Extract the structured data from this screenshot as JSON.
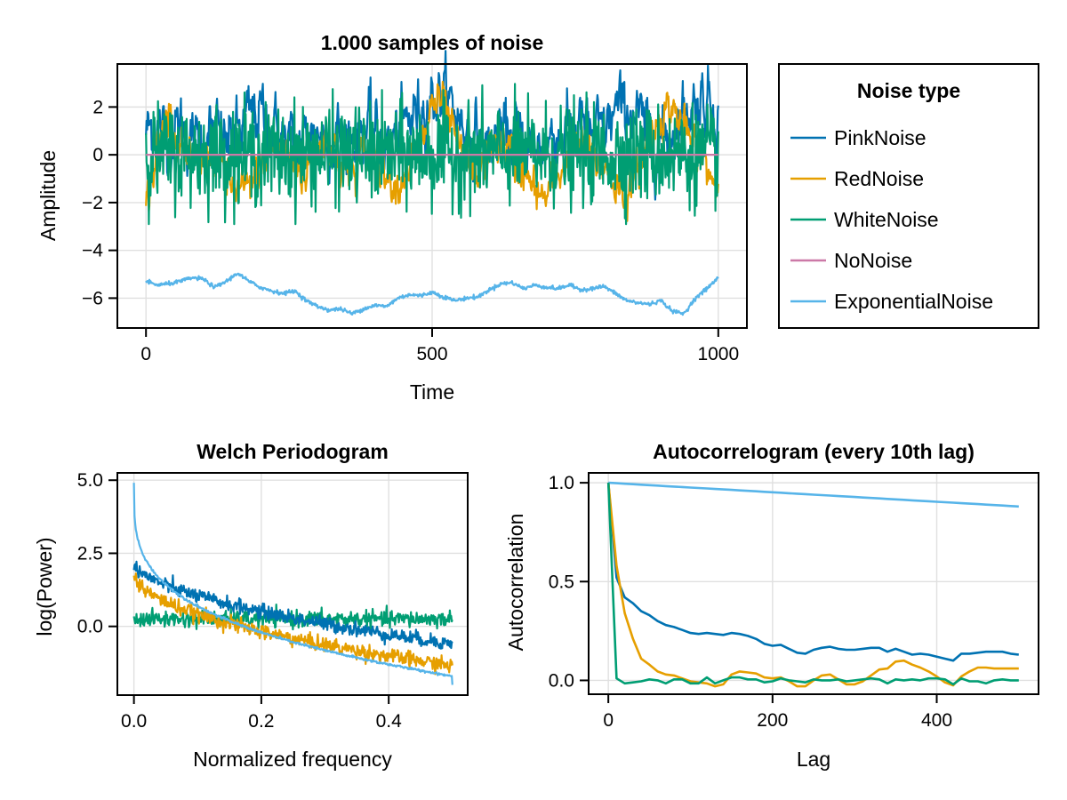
{
  "colors": {
    "PinkNoise": "#0072b2",
    "RedNoise": "#e69f00",
    "WhiteNoise": "#009e73",
    "NoNoise": "#cc79a7",
    "ExponentialNoise": "#56b4e9"
  },
  "legend": {
    "title": "Noise type",
    "entries": [
      "PinkNoise",
      "RedNoise",
      "WhiteNoise",
      "NoNoise",
      "ExponentialNoise"
    ]
  },
  "chart_data": [
    {
      "id": "timeseries",
      "type": "line",
      "title": "1.000 samples of noise",
      "xlabel": "Time",
      "ylabel": "Amplitude",
      "xlim": [
        -50,
        1050
      ],
      "ylim": [
        -7.25,
        3.8
      ],
      "xticks": [
        0,
        500,
        1000
      ],
      "xtick_labels": [
        "0",
        "500",
        "1000"
      ],
      "yticks": [
        2,
        0,
        -2,
        -4,
        -6
      ],
      "ytick_labels": [
        "2",
        "0",
        "−2",
        "−4",
        "−6"
      ],
      "grid": true,
      "x_range": [
        0,
        1000
      ],
      "n_samples": 1000,
      "series": [
        {
          "name": "PinkNoise",
          "envelope": [
            1.0,
            1.2,
            0.6,
            1.3,
            0.4,
            0.8,
            1.0,
            0.5,
            0.9,
            1.6,
            1.8,
            1.2,
            0.6,
            0.4,
            0.8,
            1.0,
            0.6,
            0.9,
            0.7,
            1.2,
            1.0,
            0.4,
            0.8,
            1.5,
            2.0,
            2.4,
            2.6,
            1.8,
            1.0,
            0.6,
            0.3,
            0.8,
            1.0,
            0.5,
            0.2,
            0.6,
            0.9,
            1.0,
            1.3,
            0.8,
            1.0,
            1.8,
            2.0,
            1.5,
            0.8,
            0.6,
            1.1,
            1.8,
            2.2,
            2.4,
            1.8
          ],
          "spread": 0.9
        },
        {
          "name": "RedNoise",
          "envelope": [
            -2.2,
            0.2,
            1.8,
            0.4,
            -0.8,
            -0.4,
            0.2,
            -1.0,
            -1.6,
            -1.5,
            -0.6,
            0.2,
            0.3,
            -0.4,
            -0.8,
            0.6,
            0.8,
            -0.4,
            -0.9,
            0.0,
            0.4,
            -0.7,
            -1.2,
            -0.4,
            0.0,
            2.2,
            2.0,
            0.6,
            -0.5,
            -0.8,
            0.2,
            0.6,
            -0.2,
            -0.8,
            -1.6,
            -1.8,
            -0.8,
            0.0,
            0.4,
            -0.3,
            -0.4,
            -1.2,
            -1.8,
            -0.6,
            0.6,
            1.8,
            2.0,
            1.0,
            0.2,
            -0.6,
            -1.2
          ],
          "spread": 0.6
        },
        {
          "name": "WhiteNoise",
          "envelope": [
            0,
            0,
            0,
            0,
            0,
            0,
            0,
            0,
            0,
            0,
            0,
            0,
            0,
            0,
            0,
            0,
            0,
            0,
            0,
            0,
            0,
            0,
            0,
            0,
            0,
            0,
            0,
            0,
            0,
            0,
            0,
            0,
            0,
            0,
            0,
            0,
            0,
            0,
            0,
            0,
            0,
            0,
            0,
            0,
            0,
            0,
            0,
            0,
            0,
            0,
            0
          ],
          "spread": 1.0,
          "range": [
            -2.9,
            3.0
          ]
        },
        {
          "name": "NoNoise",
          "envelope": [
            0,
            0
          ],
          "spread": 0
        },
        {
          "name": "ExponentialNoise",
          "envelope": [
            -5.3,
            -5.45,
            -5.4,
            -5.3,
            -5.15,
            -5.2,
            -5.55,
            -5.3,
            -4.95,
            -5.3,
            -5.55,
            -5.7,
            -5.8,
            -5.7,
            -6.1,
            -6.35,
            -6.5,
            -6.45,
            -6.65,
            -6.45,
            -6.3,
            -6.35,
            -6.0,
            -5.85,
            -5.9,
            -5.75,
            -5.95,
            -6.1,
            -6.0,
            -5.95,
            -5.65,
            -5.4,
            -5.35,
            -5.6,
            -5.45,
            -5.55,
            -5.6,
            -5.45,
            -5.65,
            -5.6,
            -5.5,
            -5.8,
            -6.1,
            -6.2,
            -6.25,
            -6.1,
            -6.55,
            -6.65,
            -6.0,
            -5.6,
            -5.15
          ],
          "spread": 0.04
        }
      ]
    },
    {
      "id": "welch",
      "type": "line",
      "title": "Welch Periodogram",
      "xlabel": "Normalized frequency",
      "ylabel": "log(Power)",
      "xlim": [
        -0.026,
        0.524
      ],
      "ylim": [
        -2.35,
        5.25
      ],
      "xticks": [
        0.0,
        0.2,
        0.4
      ],
      "xtick_labels": [
        "0.0",
        "0.2",
        "0.4"
      ],
      "yticks": [
        5.0,
        2.5,
        0.0
      ],
      "ytick_labels": [
        "5.0",
        "2.5",
        "0.0"
      ],
      "grid": true,
      "x_range": [
        0.0,
        0.5
      ],
      "series": [
        {
          "name": "WhiteNoise",
          "model": "flat",
          "level": 0.25,
          "jitter": 0.14
        },
        {
          "name": "PinkNoise",
          "model": "power",
          "start": 2.2,
          "end": -0.6,
          "exponent": 0.55,
          "jitter": 0.12
        },
        {
          "name": "RedNoise",
          "model": "power",
          "start": 1.85,
          "end": -1.35,
          "exponent": 0.5,
          "jitter": 0.13
        },
        {
          "name": "ExponentialNoise",
          "model": "power",
          "start": 4.9,
          "end": -1.7,
          "exponent": 0.28,
          "jitter": 0.02,
          "final_drop": -2.0
        }
      ]
    },
    {
      "id": "autocorrelogram",
      "type": "line",
      "title": "Autocorrelogram (every 10th lag)",
      "xlabel": "Lag",
      "ylabel": "Autocorrelation",
      "xlim": [
        -24,
        524
      ],
      "ylim": [
        -0.07,
        1.05
      ],
      "xticks": [
        0,
        200,
        400
      ],
      "xtick_labels": [
        "0",
        "200",
        "400"
      ],
      "yticks": [
        1.0,
        0.5,
        0.0
      ],
      "ytick_labels": [
        "1.0",
        "0.5",
        "0.0"
      ],
      "grid": true,
      "x": [
        0,
        10,
        20,
        30,
        40,
        50,
        60,
        70,
        80,
        90,
        100,
        110,
        120,
        130,
        140,
        150,
        160,
        170,
        180,
        190,
        200,
        210,
        220,
        230,
        240,
        250,
        260,
        270,
        280,
        290,
        300,
        310,
        320,
        330,
        340,
        350,
        360,
        370,
        380,
        390,
        400,
        410,
        420,
        430,
        440,
        450,
        460,
        470,
        480,
        490,
        500
      ],
      "series": [
        {
          "name": "ExponentialNoise",
          "values": [
            1.0,
            0.9976,
            0.9952,
            0.9928,
            0.9904,
            0.988,
            0.9856,
            0.9832,
            0.9808,
            0.9784,
            0.976,
            0.9736,
            0.9712,
            0.9688,
            0.9664,
            0.964,
            0.9616,
            0.9592,
            0.9568,
            0.9544,
            0.952,
            0.9496,
            0.9472,
            0.9448,
            0.9424,
            0.94,
            0.9376,
            0.9352,
            0.9328,
            0.9304,
            0.928,
            0.9256,
            0.9232,
            0.9208,
            0.9184,
            0.916,
            0.9136,
            0.9112,
            0.9088,
            0.9064,
            0.904,
            0.9016,
            0.8992,
            0.8968,
            0.8944,
            0.892,
            0.8896,
            0.8872,
            0.8848,
            0.8824,
            0.88
          ]
        },
        {
          "name": "PinkNoise",
          "values": [
            1.0,
            0.52,
            0.42,
            0.39,
            0.35,
            0.33,
            0.3,
            0.28,
            0.27,
            0.255,
            0.24,
            0.235,
            0.24,
            0.235,
            0.23,
            0.24,
            0.235,
            0.225,
            0.21,
            0.185,
            0.175,
            0.18,
            0.16,
            0.14,
            0.135,
            0.155,
            0.165,
            0.17,
            0.16,
            0.155,
            0.155,
            0.16,
            0.165,
            0.165,
            0.145,
            0.16,
            0.145,
            0.13,
            0.135,
            0.13,
            0.12,
            0.11,
            0.1,
            0.135,
            0.135,
            0.14,
            0.145,
            0.145,
            0.145,
            0.135,
            0.13
          ]
        },
        {
          "name": "RedNoise",
          "values": [
            1.0,
            0.58,
            0.34,
            0.21,
            0.11,
            0.08,
            0.045,
            0.03,
            0.025,
            0.01,
            -0.005,
            -0.01,
            -0.015,
            -0.03,
            -0.02,
            0.03,
            0.045,
            0.04,
            0.035,
            0.015,
            0.01,
            0.015,
            -0.005,
            -0.03,
            -0.03,
            0.0,
            0.025,
            0.03,
            0.005,
            -0.02,
            -0.02,
            -0.005,
            0.025,
            0.055,
            0.06,
            0.095,
            0.1,
            0.08,
            0.065,
            0.045,
            0.02,
            -0.01,
            -0.025,
            0.02,
            0.045,
            0.065,
            0.065,
            0.06,
            0.06,
            0.06,
            0.06
          ]
        },
        {
          "name": "WhiteNoise",
          "values": [
            1.0,
            0.01,
            -0.015,
            -0.01,
            -0.005,
            0.005,
            0.0,
            -0.015,
            0.005,
            0.005,
            -0.015,
            -0.015,
            0.015,
            -0.015,
            0.0,
            0.015,
            0.015,
            0.005,
            0.005,
            -0.01,
            -0.005,
            0.01,
            0.0,
            -0.005,
            -0.01,
            0.005,
            0.0,
            0.0,
            0.005,
            -0.005,
            0.0,
            0.005,
            0.01,
            0.005,
            -0.015,
            0.005,
            0.0,
            0.005,
            0.0,
            0.01,
            0.01,
            0.005,
            -0.02,
            0.01,
            -0.005,
            -0.005,
            -0.015,
            0.0,
            0.005,
            0.0,
            0.0
          ]
        }
      ]
    }
  ]
}
